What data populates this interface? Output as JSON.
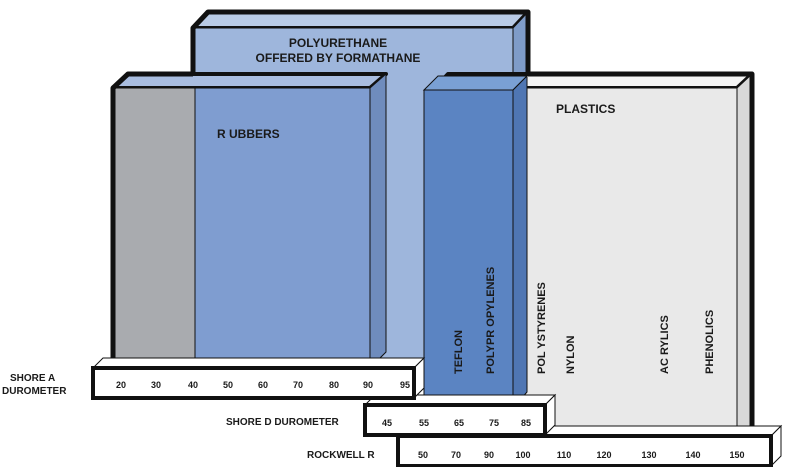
{
  "colors": {
    "polyurethane": "#9eb6dc",
    "rubbers": "#7f9dd0",
    "plastics": "#e9e9e9",
    "grey_block": "#a9abaf",
    "polypropylene_overlap": "#5b84c2",
    "outline": "#111111"
  },
  "title": {
    "line1": "POLYURETHANE",
    "line2": "OFFERED BY FORMATHANE"
  },
  "regions": {
    "rubbers": "R UBBERS",
    "plastics": "PLASTICS"
  },
  "scales": {
    "shore_a": {
      "label_line1": "SHORE A",
      "label_line2": "DUROMETER",
      "ticks": [
        "20",
        "30",
        "40",
        "50",
        "60",
        "70",
        "80",
        "90",
        "95"
      ]
    },
    "shore_d": {
      "label": "SHORE D DUROMETER",
      "ticks": [
        "45",
        "55",
        "65",
        "75",
        "85"
      ]
    },
    "rockwell": {
      "label": "ROCKWELL R",
      "ticks": [
        "50",
        "70",
        "90",
        "100",
        "110",
        "120",
        "130",
        "140",
        "150"
      ]
    }
  },
  "materials": [
    "TEFLON",
    "POLYPR OPYLENES",
    "POL YSTYRENES",
    "NYLON",
    "AC RYLICS",
    "PHENOLICS"
  ]
}
